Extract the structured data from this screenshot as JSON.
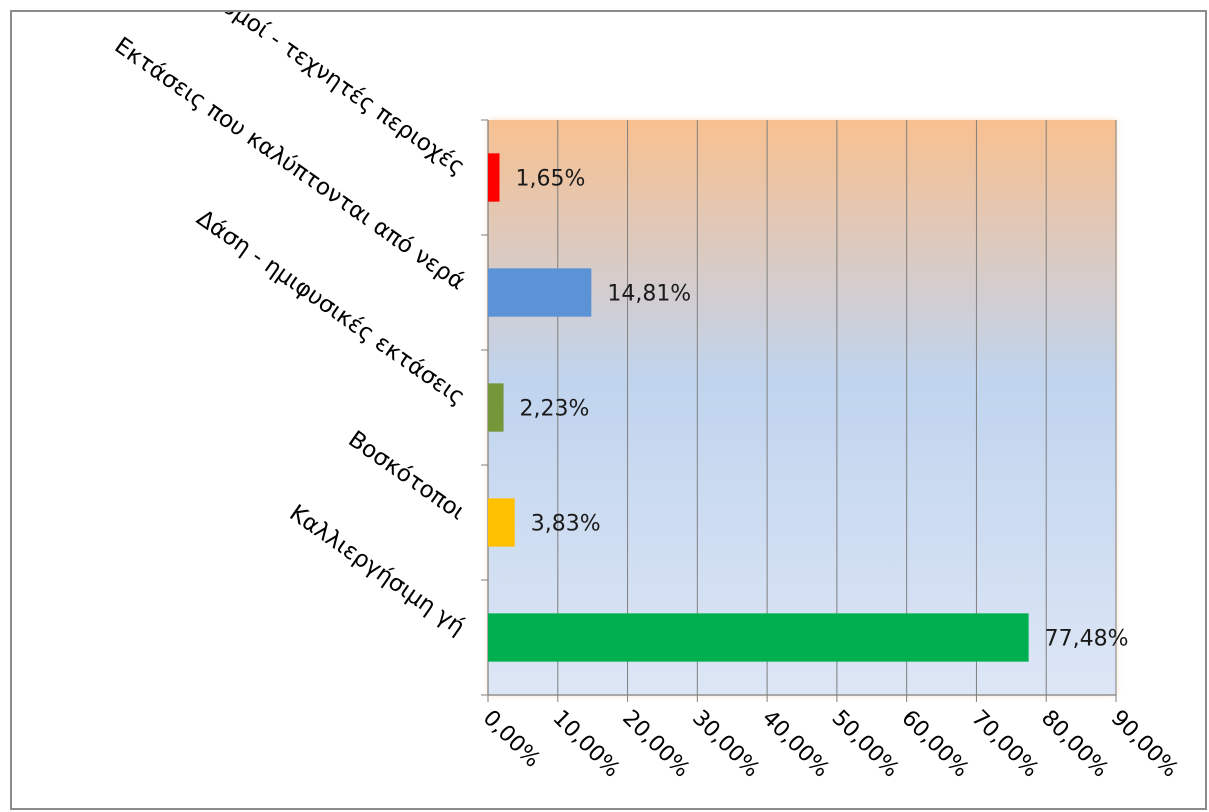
{
  "chart_data": {
    "type": "bar",
    "orientation": "horizontal",
    "categories": [
      "Οικισμοί - τεχνητές περιοχές",
      "Εκτάσεις που καλύπτονται από νερά",
      "Δάση - ημιφυσικές εκτάσεις",
      "Βοσκότοποι",
      "Καλλιεργήσιμη γή"
    ],
    "values": [
      1.65,
      14.81,
      2.23,
      3.83,
      77.48
    ],
    "data_labels": [
      "1,65%",
      "14,81%",
      "2,23%",
      "3,83%",
      "77,48%"
    ],
    "bar_colors": [
      "#ff0000",
      "#5b93d6",
      "#76963a",
      "#ffc000",
      "#00b050"
    ],
    "x_ticks": [
      "0,00%",
      "10,00%",
      "20,00%",
      "30,00%",
      "40,00%",
      "50,00%",
      "60,00%",
      "70,00%",
      "80,00%",
      "90,00%"
    ],
    "xlim": [
      0,
      90
    ],
    "grid": true,
    "legend": "none",
    "title": "",
    "xlabel": "",
    "ylabel": "",
    "background_gradient": [
      "#f8c090",
      "#c0d4ee",
      "#dde6f5"
    ]
  }
}
